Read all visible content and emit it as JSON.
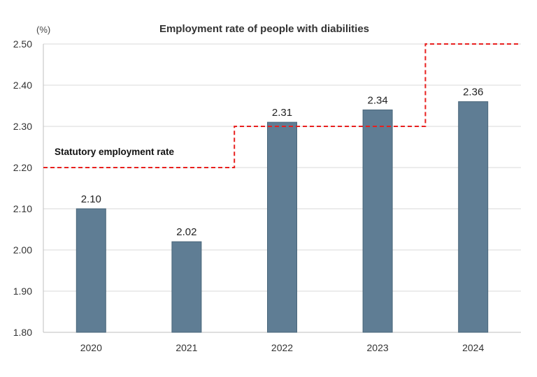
{
  "chart_data": {
    "type": "bar",
    "title": "Employment rate of people with diabilities",
    "unit_label": "(%)",
    "categories": [
      "2020",
      "2021",
      "2022",
      "2023",
      "2024"
    ],
    "series": [
      {
        "name": "Employment rate",
        "values": [
          2.1,
          2.02,
          2.31,
          2.34,
          2.36
        ],
        "value_labels": [
          "2.10",
          "2.02",
          "2.31",
          "2.34",
          "2.36"
        ],
        "color": "#5f7d94"
      }
    ],
    "reference_line": {
      "name": "Statutory employment rate",
      "style": "dashed-step",
      "color": "#e8201f",
      "steps": [
        {
          "from": "2020",
          "to": "2021",
          "value": 2.2
        },
        {
          "from": "2022",
          "to": "2023",
          "value": 2.3
        },
        {
          "from": "2024",
          "to": "2024",
          "value": 2.5
        }
      ]
    },
    "ylim": [
      1.8,
      2.5
    ],
    "yticks": [
      "1.80",
      "1.90",
      "2.00",
      "2.10",
      "2.20",
      "2.30",
      "2.40",
      "2.50"
    ],
    "xlabel": "",
    "ylabel": "",
    "grid": true,
    "annotation": {
      "text": "Statutory employment rate"
    }
  }
}
